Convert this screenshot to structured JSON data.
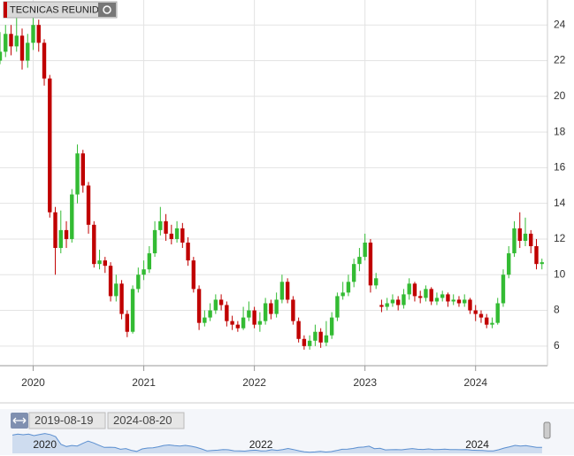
{
  "chart_data": {
    "type": "candlestick",
    "title": "TECNICAS REUNID",
    "up_color": "#33bb33",
    "down_color": "#c00000",
    "grid": true,
    "xlim": [
      2019.7,
      2024.65
    ],
    "xticks": [
      2020,
      2021,
      2022,
      2023,
      2024
    ],
    "ylim": [
      4.9,
      25.4
    ],
    "yticks": [
      6,
      8,
      10,
      12,
      14,
      16,
      18,
      20,
      22,
      24
    ],
    "x": [
      2019.7,
      2019.75,
      2019.8,
      2019.85,
      2019.9,
      2019.95,
      2020,
      2020.05,
      2020.1,
      2020.15,
      2020.2,
      2020.25,
      2020.3,
      2020.35,
      2020.4,
      2020.45,
      2020.5,
      2020.55,
      2020.6,
      2020.65,
      2020.7,
      2020.75,
      2020.8,
      2020.85,
      2020.9,
      2020.95,
      2021,
      2021.05,
      2021.1,
      2021.15,
      2021.2,
      2021.25,
      2021.3,
      2021.35,
      2021.4,
      2021.45,
      2021.5,
      2021.55,
      2021.6,
      2021.65,
      2021.7,
      2021.75,
      2021.8,
      2021.85,
      2021.9,
      2021.95,
      2022,
      2022.05,
      2022.1,
      2022.15,
      2022.2,
      2022.25,
      2022.3,
      2022.35,
      2022.4,
      2022.45,
      2022.5,
      2022.55,
      2022.6,
      2022.65,
      2022.7,
      2022.75,
      2022.8,
      2022.85,
      2022.9,
      2022.95,
      2023,
      2023.05,
      2023.1,
      2023.15,
      2023.2,
      2023.25,
      2023.3,
      2023.35,
      2023.4,
      2023.45,
      2023.5,
      2023.55,
      2023.6,
      2023.65,
      2023.7,
      2023.75,
      2023.8,
      2023.85,
      2023.9,
      2023.95,
      2024,
      2024.05,
      2024.1,
      2024.15,
      2024.2,
      2024.25,
      2024.3,
      2024.35,
      2024.4,
      2024.45,
      2024.5,
      2024.55,
      2024.6
    ],
    "open": [
      22.0,
      22.5,
      23.5,
      22.8,
      23.4,
      22.0,
      23.0,
      24.0,
      23.0,
      21.0,
      13.5,
      11.5,
      12.5,
      12.0,
      14.5,
      16.8,
      15.0,
      12.8,
      10.6,
      10.8,
      10.5,
      8.8,
      9.5,
      7.8,
      6.8,
      9.2,
      10.0,
      10.3,
      11.2,
      12.5,
      13.0,
      12.3,
      12.0,
      12.6,
      11.8,
      10.8,
      9.2,
      7.3,
      7.6,
      8.0,
      8.6,
      8.3,
      7.4,
      7.2,
      7.0,
      7.6,
      8.0,
      7.2,
      7.4,
      8.4,
      7.8,
      8.6,
      9.6,
      8.6,
      7.4,
      6.4,
      6.0,
      6.3,
      6.8,
      6.2,
      6.6,
      7.6,
      8.8,
      9.0,
      9.6,
      10.6,
      11.0,
      11.8,
      9.4,
      8.3,
      8.2,
      8.4,
      8.6,
      8.3,
      8.9,
      9.5,
      8.8,
      8.7,
      9.2,
      8.5,
      8.7,
      8.9,
      8.5,
      8.6,
      8.4,
      8.6,
      8.0,
      7.8,
      7.6,
      7.2,
      7.3,
      8.4,
      10.0,
      11.2,
      12.6,
      11.9,
      12.3,
      11.6,
      10.6
    ],
    "high": [
      23.6,
      24.0,
      24.0,
      24.5,
      23.8,
      23.5,
      24.5,
      24.3,
      23.2,
      21.2,
      13.8,
      13.6,
      13.0,
      14.8,
      17.3,
      17.0,
      15.2,
      13.0,
      11.4,
      11.0,
      10.7,
      10.0,
      9.7,
      8.0,
      9.4,
      10.4,
      10.8,
      11.6,
      13.0,
      13.8,
      13.4,
      12.8,
      13.0,
      12.9,
      12.1,
      11.0,
      9.4,
      8.0,
      8.4,
      8.9,
      8.9,
      8.5,
      7.7,
      7.4,
      8.2,
      8.5,
      8.2,
      7.9,
      8.7,
      8.6,
      9.0,
      10.0,
      9.8,
      8.8,
      7.6,
      6.6,
      6.6,
      7.2,
      7.0,
      7.4,
      7.9,
      9.0,
      9.6,
      10.0,
      10.9,
      11.5,
      12.3,
      12.0,
      10.1,
      8.6,
      8.7,
      8.9,
      8.8,
      9.2,
      9.8,
      9.6,
      9.1,
      9.4,
      9.3,
      9.0,
      9.1,
      9.0,
      8.9,
      8.8,
      8.9,
      8.7,
      8.3,
      8.0,
      7.8,
      7.6,
      8.7,
      10.3,
      11.6,
      13.0,
      13.5,
      13.2,
      12.5,
      12.0,
      10.9
    ],
    "low": [
      21.8,
      22.2,
      22.3,
      22.5,
      21.5,
      21.6,
      22.6,
      22.5,
      20.6,
      13.2,
      10.0,
      11.2,
      11.5,
      11.8,
      14.0,
      14.6,
      12.3,
      10.4,
      10.3,
      10.1,
      8.5,
      8.5,
      7.5,
      6.5,
      6.7,
      9.0,
      9.7,
      10.1,
      11.0,
      12.2,
      11.9,
      11.7,
      11.8,
      11.5,
      10.5,
      9.0,
      6.9,
      7.1,
      7.4,
      7.8,
      8.0,
      7.1,
      6.9,
      6.8,
      6.9,
      7.4,
      7.0,
      6.8,
      7.2,
      7.5,
      7.6,
      8.4,
      8.4,
      7.2,
      6.2,
      5.8,
      5.8,
      6.0,
      5.9,
      6.0,
      6.4,
      7.4,
      8.6,
      8.8,
      9.3,
      10.2,
      10.8,
      9.0,
      9.2,
      7.9,
      8.0,
      8.2,
      8.0,
      8.1,
      8.6,
      8.5,
      8.4,
      8.5,
      8.3,
      8.3,
      8.5,
      8.2,
      8.3,
      8.2,
      8.2,
      7.8,
      7.4,
      7.3,
      7.0,
      7.0,
      7.2,
      8.2,
      9.8,
      11.0,
      11.5,
      11.6,
      11.2,
      10.3,
      10.3
    ],
    "close": [
      22.5,
      23.5,
      22.8,
      23.4,
      22.0,
      23.0,
      24.0,
      23.0,
      21.0,
      13.5,
      11.5,
      12.5,
      12.0,
      14.5,
      16.8,
      15.0,
      12.8,
      10.6,
      10.8,
      10.5,
      8.8,
      9.5,
      7.8,
      6.8,
      9.2,
      10.0,
      10.3,
      11.2,
      12.5,
      13.0,
      12.3,
      12.0,
      12.6,
      11.8,
      10.8,
      9.2,
      7.3,
      7.6,
      8.0,
      8.6,
      8.3,
      7.4,
      7.2,
      7.0,
      7.6,
      8.0,
      7.2,
      7.4,
      8.4,
      7.8,
      8.6,
      9.6,
      8.6,
      7.4,
      6.4,
      6.0,
      6.3,
      6.8,
      6.2,
      6.6,
      7.6,
      8.8,
      9.0,
      9.6,
      10.6,
      11.0,
      11.8,
      9.4,
      9.8,
      8.2,
      8.4,
      8.6,
      8.3,
      8.9,
      9.5,
      8.8,
      8.7,
      9.2,
      8.5,
      8.7,
      8.9,
      8.5,
      8.6,
      8.4,
      8.6,
      8.0,
      7.8,
      7.6,
      7.2,
      7.3,
      8.4,
      10.0,
      11.2,
      12.6,
      11.9,
      12.3,
      11.6,
      10.6,
      10.7
    ],
    "navigator": {
      "range_start": "2019-08-19",
      "range_end": "2024-08-20",
      "xticks": [
        2020,
        2022,
        2024
      ],
      "color": "#5b8fd0"
    }
  }
}
